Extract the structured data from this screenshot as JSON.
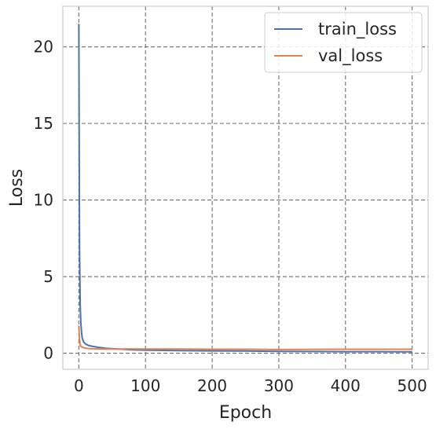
{
  "chart_data": {
    "type": "line",
    "title": "",
    "xlabel": "Epoch",
    "ylabel": "Loss",
    "xlim": [
      -24,
      524
    ],
    "ylim": [
      -1.05,
      22.65
    ],
    "xticks": [
      0,
      100,
      200,
      300,
      400,
      500
    ],
    "yticks": [
      0,
      5,
      10,
      15,
      20
    ],
    "grid": true,
    "legend_position": "top-right",
    "colors": {
      "train_loss": "#4c72b0",
      "val_loss": "#dd8452",
      "grid": "#6e6e6e",
      "frame": "#cccccc"
    },
    "series": [
      {
        "name": "train_loss",
        "x": [
          0,
          1,
          2,
          3,
          4,
          5,
          7,
          10,
          15,
          20,
          30,
          40,
          60,
          80,
          100,
          150,
          200,
          250,
          300,
          350,
          400,
          450,
          500
        ],
        "y": [
          21.5,
          7.0,
          3.2,
          2.0,
          1.4,
          1.0,
          0.75,
          0.6,
          0.5,
          0.45,
          0.38,
          0.32,
          0.27,
          0.22,
          0.2,
          0.17,
          0.15,
          0.14,
          0.12,
          0.11,
          0.1,
          0.1,
          0.09
        ]
      },
      {
        "name": "val_loss",
        "x": [
          0,
          1,
          2,
          3,
          5,
          8,
          10,
          15,
          20,
          30,
          40,
          60,
          80,
          100,
          150,
          200,
          250,
          300,
          350,
          400,
          450,
          500
        ],
        "y": [
          1.8,
          0.9,
          0.55,
          0.45,
          0.4,
          0.35,
          0.33,
          0.3,
          0.29,
          0.28,
          0.27,
          0.27,
          0.28,
          0.27,
          0.27,
          0.26,
          0.26,
          0.24,
          0.25,
          0.26,
          0.26,
          0.26
        ]
      }
    ]
  }
}
